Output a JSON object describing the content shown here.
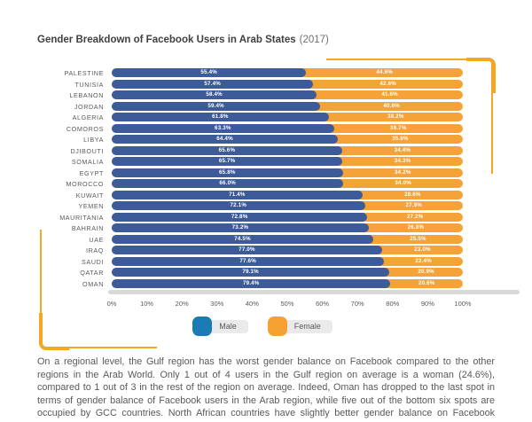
{
  "header": {
    "title": "Gender Breakdown of Facebook Users in Arab States",
    "year": "(2017)"
  },
  "chart_data": {
    "type": "bar",
    "orientation": "horizontal",
    "stacked": true,
    "title": "Gender Breakdown of Facebook Users in Arab States (2017)",
    "categories": [
      "PALESTINE",
      "TUNISIA",
      "LEBANON",
      "JORDAN",
      "ALGERIA",
      "COMOROS",
      "LIBYA",
      "DJIBOUTI",
      "SOMALIA",
      "EGYPT",
      "MOROCCO",
      "KUWAIT",
      "YEMEN",
      "MAURITANIA",
      "BAHRAIN",
      "UAE",
      "IRAQ",
      "SAUDI",
      "QATAR",
      "OMAN"
    ],
    "series": [
      {
        "name": "Male",
        "color": "#3d5b99",
        "values": [
          55.4,
          57.4,
          58.4,
          59.4,
          61.8,
          63.3,
          64.4,
          65.6,
          65.7,
          65.8,
          66.0,
          71.4,
          72.1,
          72.8,
          73.2,
          74.5,
          77.0,
          77.6,
          79.1,
          79.4
        ]
      },
      {
        "name": "Female",
        "color": "#f5a239",
        "values": [
          44.6,
          42.6,
          41.6,
          40.6,
          38.2,
          36.7,
          35.6,
          34.4,
          34.3,
          34.2,
          34.0,
          28.6,
          27.9,
          27.2,
          26.8,
          25.5,
          23.0,
          22.4,
          20.9,
          20.6
        ]
      }
    ],
    "x_ticks": [
      "0%",
      "10%",
      "20%",
      "30%",
      "40%",
      "50%",
      "60%",
      "70%",
      "80%",
      "90%",
      "100%"
    ],
    "xlim": [
      0,
      100
    ],
    "value_label_format": "one_decimal_percent",
    "legend_position": "bottom",
    "grid": false
  },
  "legend": {
    "male": {
      "label": "Male",
      "swatch_color": "#1b7cb5"
    },
    "female": {
      "label": "Female",
      "swatch_color": "#f5a233"
    }
  },
  "colors": {
    "male_bar": "#3d5b99",
    "female_bar": "#f5a239",
    "legend_male_swatch": "#1b7cb5",
    "legend_female_swatch": "#f5a233",
    "axis_track": "#d9d9d9",
    "bracket": "#f5a623",
    "label_gray": "#595959"
  },
  "body_text": {
    "paragraph": "On a regional level, the Gulf region has the worst gender balance on Facebook compared to the other regions in the Arab World. Only 1 out of 4 users in the Gulf region on average is a woman (24.6%), compared to 1 out of 3 in the rest of the region on average. Indeed, Oman has dropped to the last spot in terms of gender balance of Facebook users in the Arab region, while five out of the bottom six spots are occupied by GCC countries. North African countries have slightly better gender balance on Facebook compared to the other regions, with"
  }
}
